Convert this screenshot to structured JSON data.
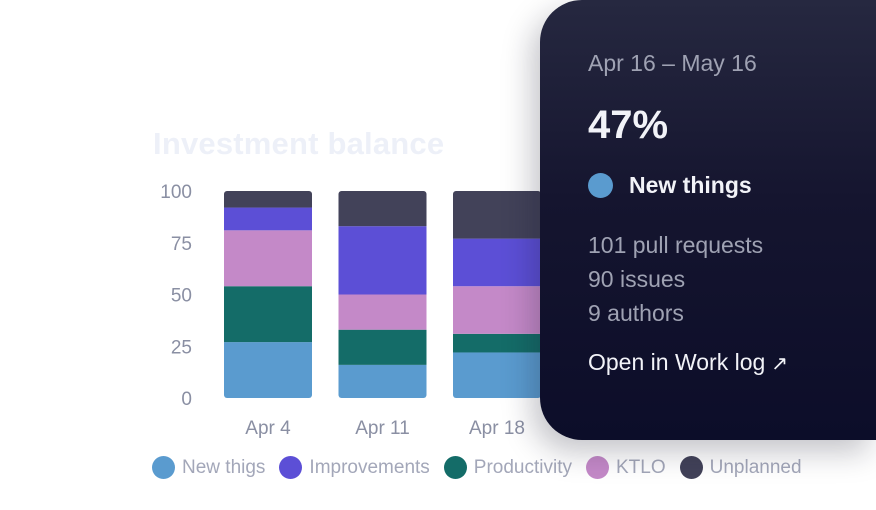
{
  "chart_data": {
    "type": "bar",
    "stacked": true,
    "title": "Investment balance",
    "xlabel": "",
    "ylabel": "",
    "ylim": [
      0,
      100
    ],
    "yticks": [
      0,
      25,
      50,
      75,
      100
    ],
    "categories": [
      "Apr 4",
      "Apr 11",
      "Apr 18"
    ],
    "series": [
      {
        "name": "New thigs",
        "color": "#5a9bcf",
        "values": [
          27,
          16,
          22
        ]
      },
      {
        "name": "Productivity",
        "color": "#146c68",
        "values": [
          27,
          17,
          9
        ]
      },
      {
        "name": "KTLO",
        "color": "#c489c8",
        "values": [
          27,
          17,
          23
        ]
      },
      {
        "name": "Improvements",
        "color": "#5c4fd6",
        "values": [
          11,
          33,
          23
        ]
      },
      {
        "name": "Unplanned",
        "color": "#424259",
        "values": [
          8,
          17,
          23
        ]
      }
    ],
    "legend": [
      "New thigs",
      "Improvements",
      "Productivity",
      "KTLO",
      "Unplanned"
    ],
    "legend_placement": "bottom",
    "grid": false
  },
  "tooltip": {
    "range": "Apr 16 – May 16",
    "percent": "47%",
    "category": "New things",
    "category_color": "#5a9bcf",
    "stats": [
      "101 pull requests",
      "90 issues",
      "9 authors"
    ],
    "link_label": "Open in Work log",
    "link_icon": "arrow-up-right-icon"
  }
}
